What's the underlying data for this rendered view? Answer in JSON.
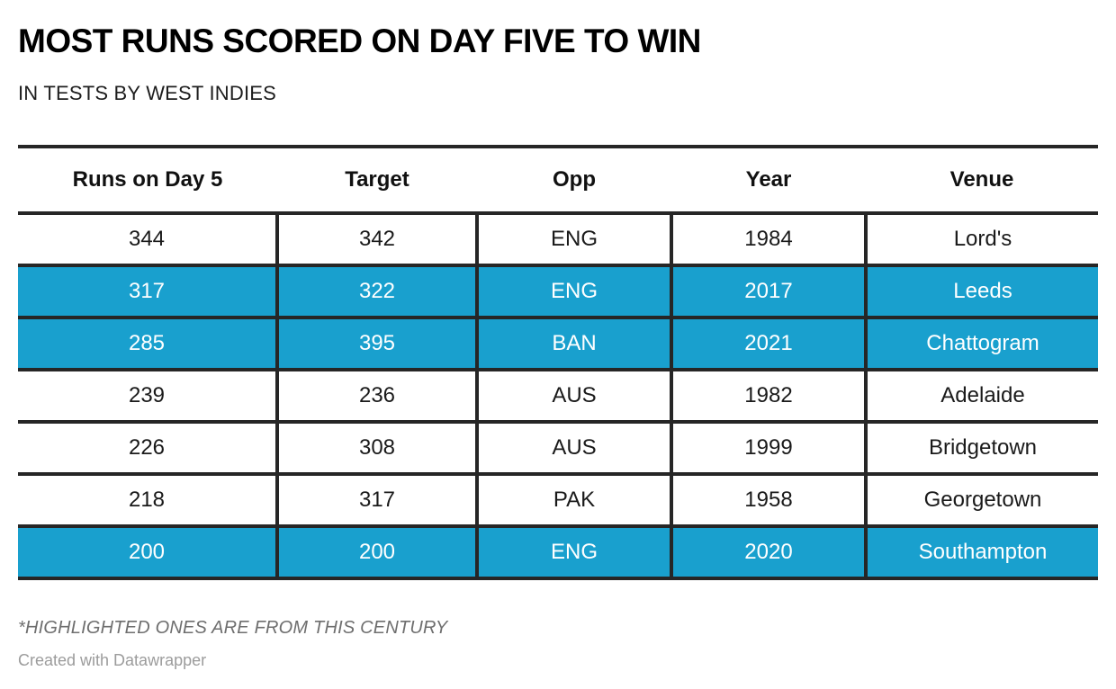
{
  "header": {
    "title": "MOST RUNS SCORED ON DAY FIVE TO WIN",
    "subtitle": "IN TESTS BY WEST INDIES"
  },
  "chart_data": {
    "type": "table",
    "title": "MOST RUNS SCORED ON DAY FIVE TO WIN",
    "subtitle": "IN TESTS BY WEST INDIES",
    "columns": [
      "Runs on Day 5",
      "Target",
      "Opp",
      "Year",
      "Venue"
    ],
    "rows": [
      {
        "runs": "344",
        "target": "342",
        "opp": "ENG",
        "year": "1984",
        "venue": "Lord's",
        "highlighted": false
      },
      {
        "runs": "317",
        "target": "322",
        "opp": "ENG",
        "year": "2017",
        "venue": "Leeds",
        "highlighted": true
      },
      {
        "runs": "285",
        "target": "395",
        "opp": "BAN",
        "year": "2021",
        "venue": "Chattogram",
        "highlighted": true
      },
      {
        "runs": "239",
        "target": "236",
        "opp": "AUS",
        "year": "1982",
        "venue": "Adelaide",
        "highlighted": false
      },
      {
        "runs": "226",
        "target": "308",
        "opp": "AUS",
        "year": "1999",
        "venue": "Bridgetown",
        "highlighted": false
      },
      {
        "runs": "218",
        "target": "317",
        "opp": "PAK",
        "year": "1958",
        "venue": "Georgetown",
        "highlighted": false
      },
      {
        "runs": "200",
        "target": "200",
        "opp": "ENG",
        "year": "2020",
        "venue": "Southampton",
        "highlighted": true
      }
    ],
    "highlight_meaning": "Highlighted ones are from this century",
    "colors": {
      "highlight_background": "#19a0ce",
      "highlight_text": "#ffffff",
      "border": "#262626",
      "text": "#1a1a1a"
    },
    "legend_position": "none",
    "grid": "full-cell-borders"
  },
  "footer": {
    "note": "*HIGHLIGHTED ONES ARE FROM THIS CENTURY",
    "attribution": "Created with Datawrapper"
  }
}
